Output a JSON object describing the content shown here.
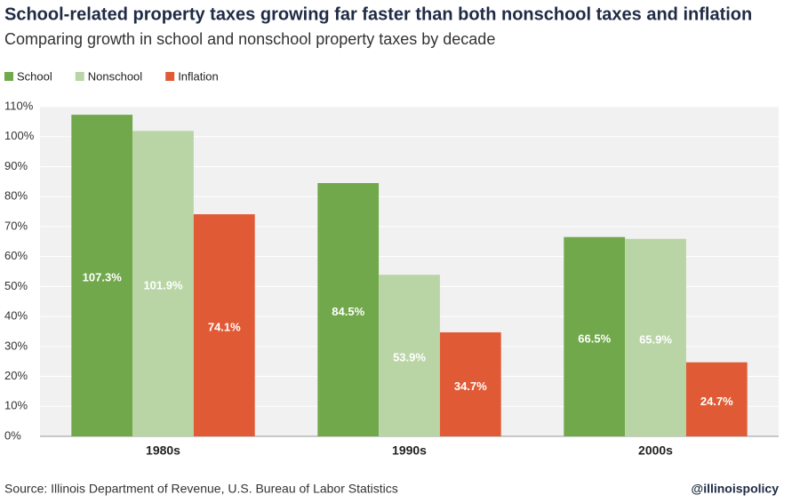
{
  "chart_data": {
    "type": "bar",
    "title": "School-related property taxes growing far faster than both nonschool taxes and inflation",
    "subtitle": "Comparing growth in school and nonschool property taxes by decade",
    "categories": [
      "1980s",
      "1990s",
      "2000s"
    ],
    "series": [
      {
        "name": "School",
        "color": "#70a84b",
        "values": [
          107.3,
          84.5,
          66.5
        ],
        "value_labels": [
          "107.3%",
          "84.5%",
          "66.5%"
        ]
      },
      {
        "name": "Nonschool",
        "color": "#b9d5a5",
        "values": [
          101.9,
          53.9,
          65.9
        ],
        "value_labels": [
          "101.9%",
          "53.9%",
          "65.9%"
        ]
      },
      {
        "name": "Inflation",
        "color": "#e05b35",
        "values": [
          74.1,
          34.7,
          24.7
        ],
        "value_labels": [
          "74.1%",
          "34.7%",
          "24.7%"
        ]
      }
    ],
    "ylim": [
      0,
      110
    ],
    "yticks": [
      {
        "value": 0,
        "label": "0%"
      },
      {
        "value": 10,
        "label": "10%"
      },
      {
        "value": 20,
        "label": "20%"
      },
      {
        "value": 30,
        "label": "30%"
      },
      {
        "value": 40,
        "label": "40%"
      },
      {
        "value": 50,
        "label": "50%"
      },
      {
        "value": 60,
        "label": "60%"
      },
      {
        "value": 70,
        "label": "70%"
      },
      {
        "value": 80,
        "label": "80%"
      },
      {
        "value": 90,
        "label": "90%"
      },
      {
        "value": 100,
        "label": "100%"
      },
      {
        "value": 110,
        "label": "110%"
      }
    ],
    "grid": true,
    "source": "Source: Illinois Department of Revenue, U.S. Bureau of Labor Statistics",
    "credit": "@illinoispolicy"
  }
}
